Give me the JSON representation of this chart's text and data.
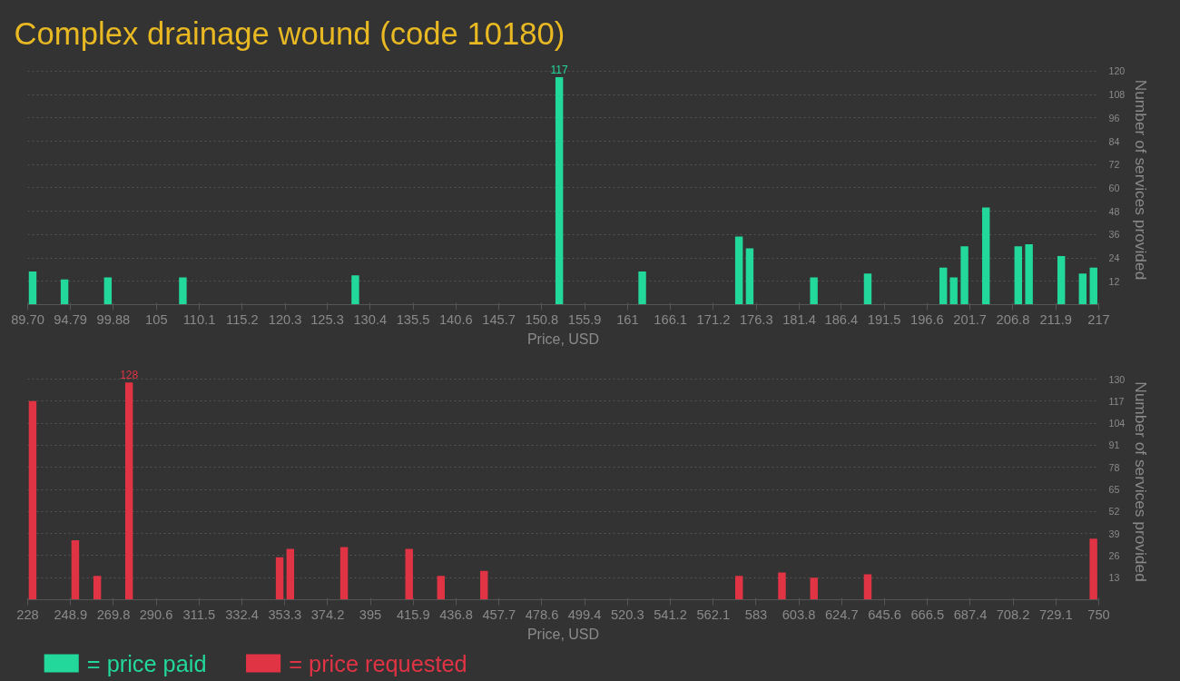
{
  "chart_data": [
    {
      "type": "bar",
      "title": "Complex drainage wound (code 10180)",
      "xlabel": "Price, USD",
      "ylabel": "Number of services provided",
      "x": [
        90.29,
        94.08,
        99.23,
        108.14,
        128.64,
        152.88,
        162.74,
        174.24,
        175.51,
        183.14,
        189.54,
        198.52,
        199.76,
        201.04,
        203.59,
        207.43,
        208.71,
        212.54,
        215.09,
        216.38
      ],
      "series": [
        {
          "name": "= price paid",
          "color": "#22d89a",
          "values": [
            17,
            13,
            14,
            14,
            15,
            117,
            17,
            35,
            29,
            14,
            16,
            19,
            14,
            30,
            50,
            30,
            31,
            25,
            16,
            19
          ],
          "value_labels": [
            null,
            null,
            null,
            null,
            null,
            "117",
            null,
            null,
            null,
            null,
            null,
            null,
            null,
            null,
            null,
            null,
            null,
            null,
            null,
            null
          ]
        }
      ],
      "xlim": [
        89.7,
        217
      ],
      "xticks": [
        {
          "value": 89.7,
          "label": "89.70"
        },
        94.79,
        99.88,
        105,
        110.1,
        115.2,
        120.3,
        125.3,
        130.4,
        135.5,
        140.6,
        145.7,
        150.8,
        155.9,
        161,
        166.1,
        171.2,
        176.3,
        181.4,
        186.4,
        191.5,
        196.6,
        201.7,
        206.8,
        211.9,
        217
      ],
      "ylim": [
        0,
        120
      ],
      "yticks": [
        12,
        24,
        36,
        48,
        60,
        72,
        84,
        96,
        108,
        120
      ],
      "grid": "y",
      "legend": "bottom"
    },
    {
      "type": "bar",
      "xlabel": "Price, USD",
      "ylabel": "Number of services provided",
      "x": [
        230.4,
        251.2,
        261.9,
        277.4,
        350.8,
        356.0,
        382.2,
        413.9,
        429.4,
        450.4,
        574.7,
        595.6,
        611.2,
        637.4,
        747.4
      ],
      "series": [
        {
          "name": "= price requested",
          "color": "#e03344",
          "values": [
            117,
            35,
            14,
            128,
            25,
            30,
            31,
            30,
            14,
            17,
            14,
            16,
            13,
            15,
            36
          ],
          "value_labels": [
            null,
            null,
            null,
            "128",
            null,
            null,
            null,
            null,
            null,
            null,
            null,
            null,
            null,
            null,
            null
          ]
        }
      ],
      "xlim": [
        228,
        750
      ],
      "xticks": [
        228,
        248.9,
        269.8,
        290.6,
        311.5,
        332.4,
        353.3,
        374.2,
        395,
        415.9,
        436.8,
        457.7,
        478.6,
        499.4,
        520.3,
        541.2,
        562.1,
        583,
        603.8,
        624.7,
        645.6,
        666.5,
        687.4,
        708.2,
        729.1,
        750
      ],
      "ylim": [
        0,
        130
      ],
      "yticks": [
        13,
        26,
        39,
        52,
        65,
        78,
        91,
        104,
        117,
        130
      ],
      "grid": "y",
      "legend": "bottom"
    }
  ]
}
